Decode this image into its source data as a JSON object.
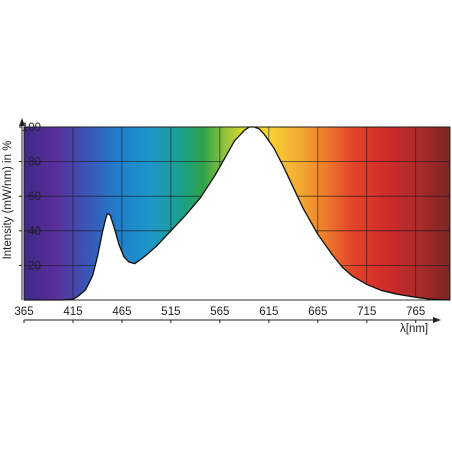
{
  "chart_data": {
    "type": "area",
    "title": "",
    "xlabel": "λ[nm]",
    "ylabel": "Intensity (mW/nm) in %",
    "xlim": [
      365,
      800
    ],
    "ylim": [
      0,
      100
    ],
    "x_ticks": [
      365,
      415,
      465,
      515,
      565,
      615,
      665,
      715,
      765
    ],
    "x_tick_labels": [
      "365",
      "415",
      "465",
      "515",
      "565",
      "615",
      "665",
      "715",
      "765"
    ],
    "y_ticks": [
      20,
      40,
      60,
      80,
      100
    ],
    "y_tick_labels": [
      "20",
      "40",
      "60",
      "80",
      "100"
    ],
    "grid": true,
    "background": "visible spectrum gradient",
    "series": [
      {
        "x": [
          365,
          405,
          415,
          420,
          428,
          435,
          440,
          445,
          448,
          450,
          453,
          457,
          462,
          467,
          472,
          478,
          483,
          490,
          500,
          515,
          530,
          545,
          560,
          570,
          580,
          590,
          595,
          600,
          605,
          610,
          620,
          630,
          640,
          650,
          665,
          680,
          690,
          700,
          715,
          730,
          745,
          760,
          770,
          780,
          790,
          800
        ],
        "values": [
          0,
          0,
          0.5,
          2,
          6,
          14,
          25,
          39,
          46,
          50,
          49,
          42,
          32,
          25,
          22,
          21,
          23,
          26,
          31,
          40,
          49,
          59,
          72,
          82,
          92,
          98,
          100,
          100,
          99,
          96,
          88,
          77,
          65,
          53,
          38,
          26,
          19,
          14,
          9,
          5.5,
          3.5,
          2,
          1.2,
          0.5,
          0.2,
          0
        ]
      }
    ]
  }
}
